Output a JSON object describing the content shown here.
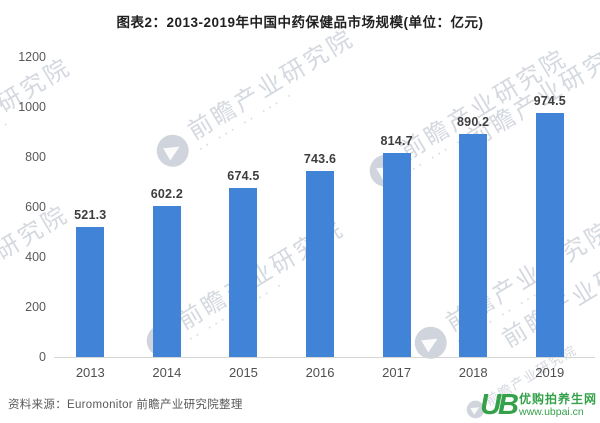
{
  "title": "图表2：2013-2019年中国中药保健品市场规模(单位：亿元)",
  "chart_data": {
    "type": "bar",
    "categories": [
      "2013",
      "2014",
      "2015",
      "2016",
      "2017",
      "2018",
      "2019"
    ],
    "values": [
      521.3,
      602.2,
      674.5,
      743.6,
      814.7,
      890.2,
      974.5
    ],
    "title": "图表2：2013-2019年中国中药保健品市场规模(单位：亿元)",
    "xlabel": "",
    "ylabel": "",
    "ylim": [
      0,
      1200
    ],
    "yticks": [
      0,
      200,
      400,
      600,
      800,
      1000,
      1200
    ],
    "grid": false,
    "legend": false,
    "bar_color": "#4183d7",
    "value_label_color": "#3d3d3d"
  },
  "source": "资料来源：Euromonitor 前瞻产业研究院整理",
  "watermark": {
    "text": "前瞻产业研究院",
    "color": "#b0b8c5"
  },
  "logo": {
    "monogram": "UB",
    "name": "优购拍养生网",
    "url": "www.ubpai.cn",
    "color": "#35a24b"
  }
}
